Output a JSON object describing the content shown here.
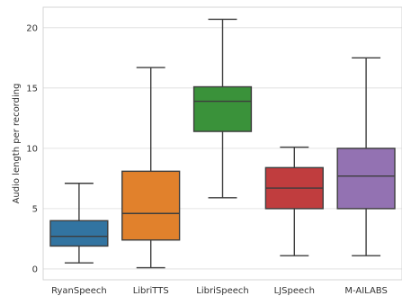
{
  "chart_data": {
    "type": "box",
    "title": "",
    "xlabel": "",
    "ylabel": "Audio length per recording",
    "ylim": [
      -0.9,
      21.7
    ],
    "yticks": [
      0,
      5,
      10,
      15,
      20
    ],
    "grid": "horizontal",
    "categories": [
      "RyanSpeech",
      "LibriTTS",
      "LibriSpeech",
      "LJSpeech",
      "M-AILABS"
    ],
    "boxes": [
      {
        "name": "RyanSpeech",
        "whisker_low": 0.5,
        "q1": 1.9,
        "median": 2.7,
        "q3": 4.0,
        "whisker_high": 7.1,
        "color": "#3274a1"
      },
      {
        "name": "LibriTTS",
        "whisker_low": 0.1,
        "q1": 2.4,
        "median": 4.6,
        "q3": 8.1,
        "whisker_high": 16.7,
        "color": "#e1812c"
      },
      {
        "name": "LibriSpeech",
        "whisker_low": 5.9,
        "q1": 11.4,
        "median": 13.9,
        "q3": 15.1,
        "whisker_high": 20.7,
        "color": "#3a923a"
      },
      {
        "name": "LJSpeech",
        "whisker_low": 1.1,
        "q1": 5.0,
        "median": 6.7,
        "q3": 8.4,
        "whisker_high": 10.1,
        "color": "#c03d3e"
      },
      {
        "name": "M-AILABS",
        "whisker_low": 1.1,
        "q1": 5.0,
        "median": 7.7,
        "q3": 10.0,
        "whisker_high": 17.5,
        "color": "#9372b2"
      }
    ]
  }
}
